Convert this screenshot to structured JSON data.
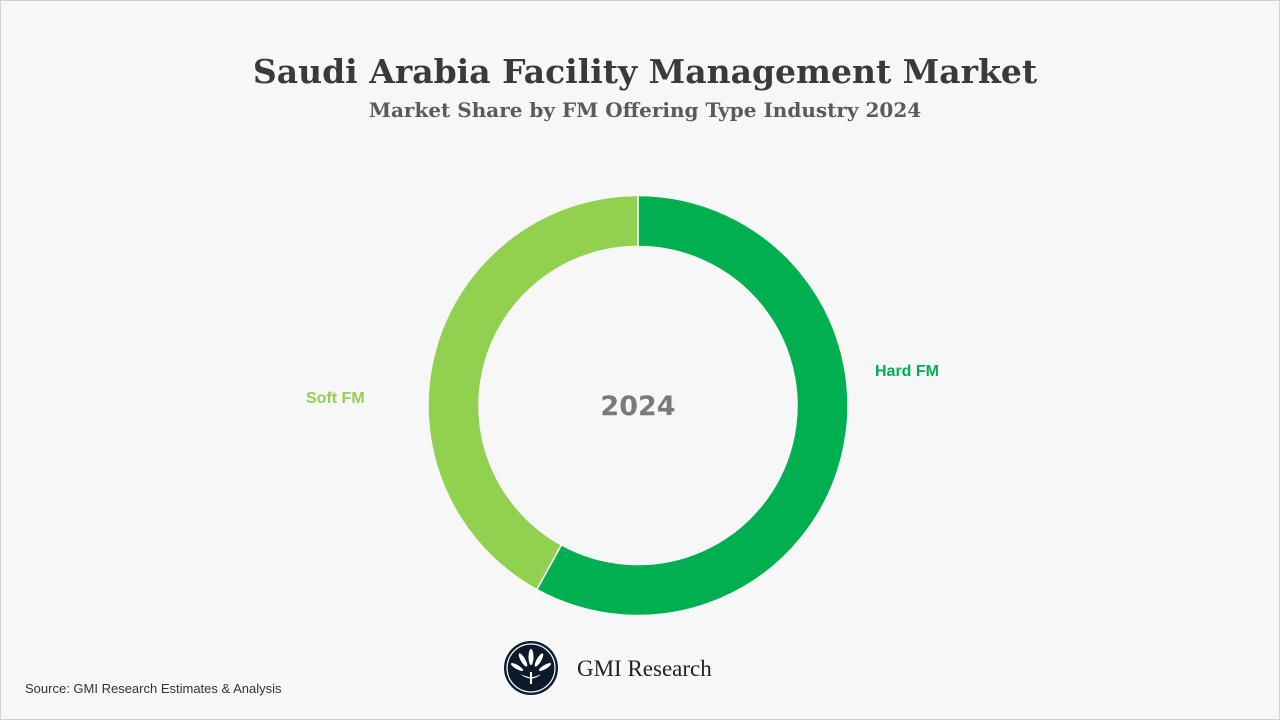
{
  "chart_data": {
    "type": "pie",
    "donut": true,
    "title": "Saudi Arabia Facility Management Market",
    "subtitle": "Market Share by FM Offering Type Industry 2024",
    "center_label": "2024",
    "categories": [
      "Hard FM",
      "Soft FM"
    ],
    "values": [
      58,
      42
    ],
    "colors": [
      "#00b050",
      "#92d050"
    ],
    "legend": "none"
  },
  "footer": {
    "source": "Source: GMI Research Estimates & Analysis",
    "brand": "GMI Research"
  }
}
